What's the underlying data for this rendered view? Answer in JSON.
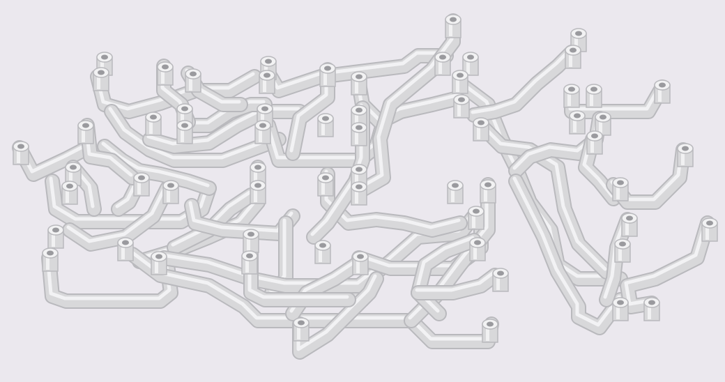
{
  "scene": {
    "subject": "pipe-network-3d-render",
    "colors": {
      "background": "#ebe8ee",
      "pipe_shadow": "#b9b9bd",
      "pipe_body": "#d8d8da",
      "pipe_highlight": "#f7f7f8",
      "port_inner": "#9a9a9e",
      "port_rim": "#f2f2f3"
    }
  }
}
